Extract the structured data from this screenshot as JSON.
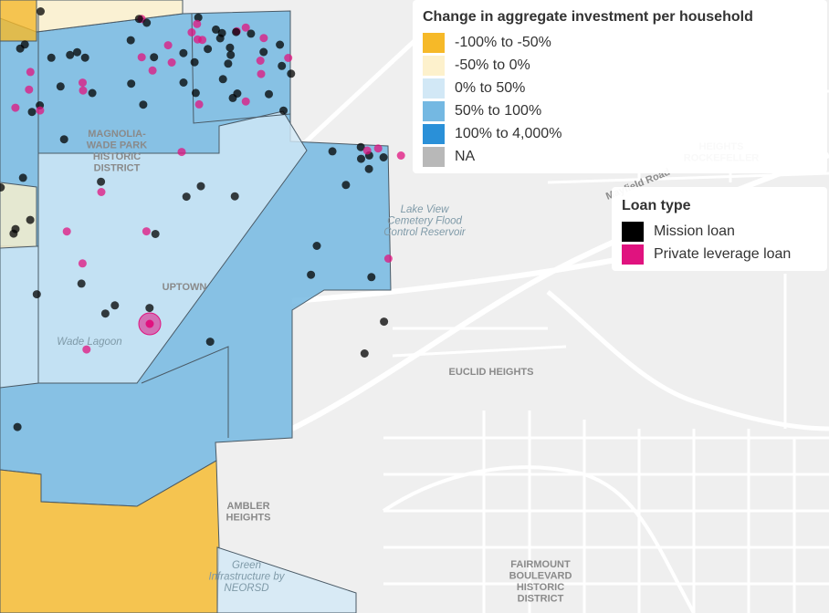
{
  "legends": [
    {
      "title": "Change in aggregate investment per household",
      "items": [
        {
          "label": "-100% to -50%",
          "color": "#f6b928"
        },
        {
          "label": "-50% to 0%",
          "color": "#fdf1cc"
        },
        {
          "label": "0% to 50%",
          "color": "#d2e8f6"
        },
        {
          "label": "50% to 100%",
          "color": "#74b8e2"
        },
        {
          "label": "100% to 4,000%",
          "color": "#2a90d8"
        },
        {
          "label": "NA",
          "color": "#b8b8b8"
        }
      ]
    },
    {
      "title": "Loan type",
      "items": [
        {
          "label": "Mission loan",
          "color": "#000000"
        },
        {
          "label": "Private leverage loan",
          "color": "#e0137f"
        }
      ]
    }
  ],
  "map_labels": [
    {
      "lines": [
        "MAGNOLIA-",
        "WADE PARK",
        "HISTORIC",
        "DISTRICT"
      ]
    },
    {
      "lines": [
        "Lake View",
        "Cemetery Flood",
        "Control Reservoir"
      ]
    },
    {
      "lines": [
        "HEIGHTS",
        "ROCKEFELLER"
      ]
    },
    {
      "lines": [
        "UPTOWN"
      ]
    },
    {
      "lines": [
        "Wade Lagoon"
      ]
    },
    {
      "lines": [
        "EUCLID HEIGHTS"
      ]
    },
    {
      "lines": [
        "AMBLER",
        "HEIGHTS"
      ]
    },
    {
      "lines": [
        "Green",
        "Infrastructure by",
        "NEORSD"
      ]
    },
    {
      "lines": [
        "FAIRMOUNT",
        "BOULEVARD",
        "HISTORIC",
        "DISTRICT"
      ]
    },
    {
      "lines": [
        "Mayfield Road"
      ]
    }
  ]
}
